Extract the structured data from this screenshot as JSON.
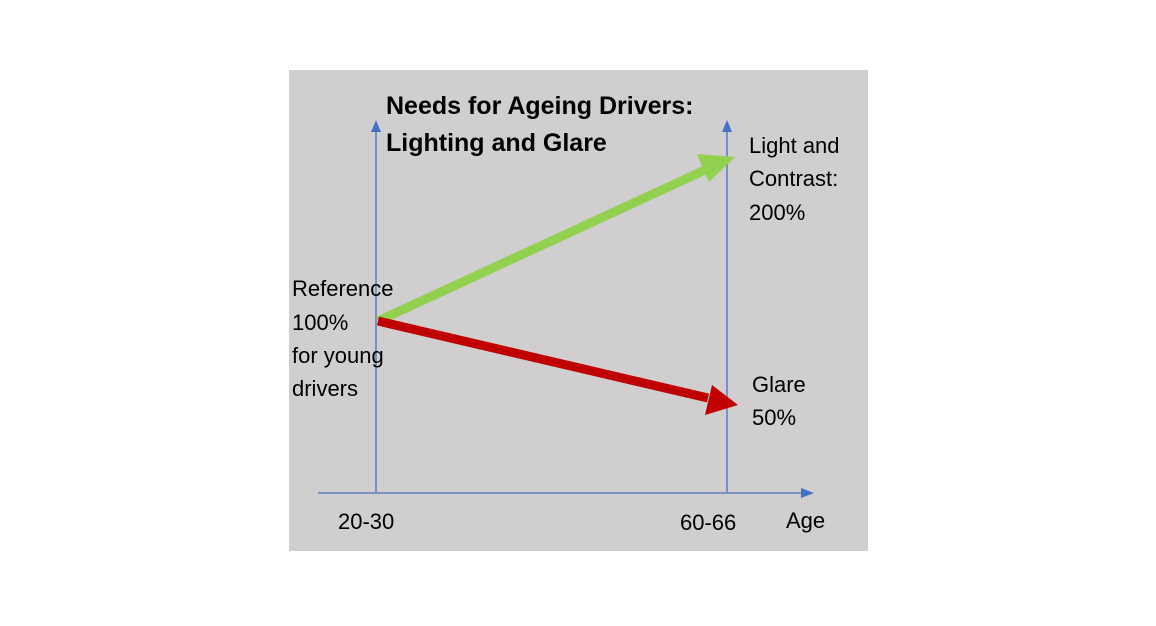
{
  "title": {
    "line1": "Needs for Ageing Drivers:",
    "line2": "Lighting and Glare"
  },
  "reference": {
    "line1": "Reference",
    "line2": "100%",
    "line3": "for young",
    "line4": "drivers"
  },
  "light": {
    "line1": "Light and",
    "line2": "Contrast:",
    "line3": "200%"
  },
  "glare": {
    "line1": "Glare",
    "line2": "50%"
  },
  "x_axis": {
    "label": "Age",
    "tick_start": "20-30",
    "tick_end": "60-66"
  },
  "colors": {
    "panel": "#d0cece",
    "axis": "#4472c4",
    "light_arrow": "#92d050",
    "glare_arrow": "#c00000"
  }
}
